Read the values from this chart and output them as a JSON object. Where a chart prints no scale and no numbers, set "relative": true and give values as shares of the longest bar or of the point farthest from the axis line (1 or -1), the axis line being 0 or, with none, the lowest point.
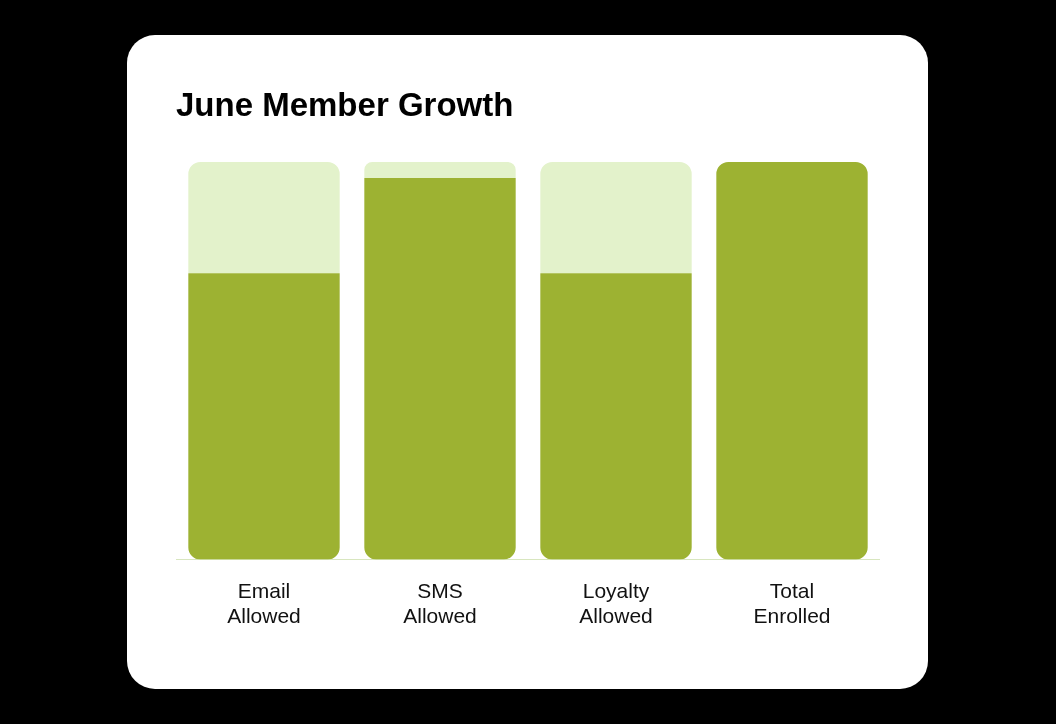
{
  "chart_data": {
    "type": "bar",
    "title": "June Member Growth",
    "relative": true,
    "stacked": true,
    "legend": false,
    "grid": false,
    "categories": [
      "Email Allowed",
      "SMS Allowed",
      "Loyalty Allowed",
      "Total Enrolled"
    ],
    "series": [
      {
        "color": "#9db232",
        "values": [
          0.72,
          0.96,
          0.72,
          1
        ]
      },
      {
        "color": "#e3f2cb",
        "values": [
          0.28,
          0.04,
          0.28,
          0
        ]
      }
    ]
  }
}
